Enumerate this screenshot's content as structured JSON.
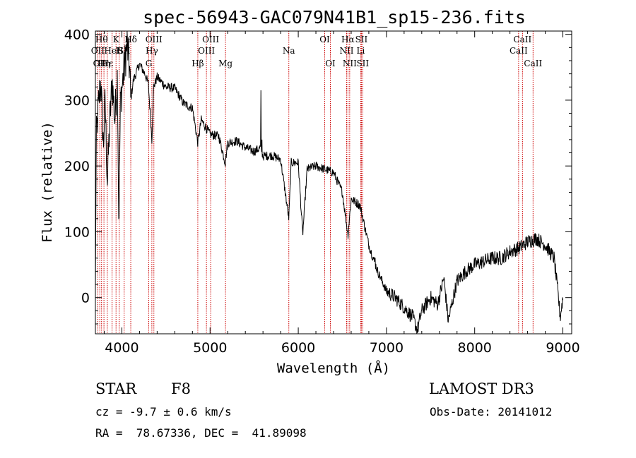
{
  "chart_data": {
    "type": "line",
    "title": "spec-56943-GAC079N41B1_sp15-236.fits",
    "xlabel": "Wavelength (Å)",
    "ylabel": "Flux (relative)",
    "xlim": [
      3700,
      9100
    ],
    "ylim": [
      -55,
      405
    ],
    "xticks": [
      4000,
      5000,
      6000,
      7000,
      8000,
      9000
    ],
    "yticks": [
      0,
      100,
      200,
      300,
      400
    ],
    "spectrum_anchors": [
      [
        3700,
        0
      ],
      [
        3710,
        240
      ],
      [
        3730,
        285
      ],
      [
        3760,
        330
      ],
      [
        3790,
        230
      ],
      [
        3810,
        300
      ],
      [
        3835,
        175
      ],
      [
        3860,
        260
      ],
      [
        3890,
        330
      ],
      [
        3920,
        270
      ],
      [
        3950,
        340
      ],
      [
        3965,
        110
      ],
      [
        3985,
        300
      ],
      [
        4020,
        340
      ],
      [
        4060,
        385
      ],
      [
        4090,
        345
      ],
      [
        4101,
        300
      ],
      [
        4130,
        330
      ],
      [
        4200,
        355
      ],
      [
        4260,
        340
      ],
      [
        4300,
        325
      ],
      [
        4340,
        240
      ],
      [
        4360,
        320
      ],
      [
        4400,
        335
      ],
      [
        4500,
        320
      ],
      [
        4600,
        318
      ],
      [
        4700,
        295
      ],
      [
        4800,
        288
      ],
      [
        4861,
        235
      ],
      [
        4900,
        270
      ],
      [
        5000,
        248
      ],
      [
        5100,
        245
      ],
      [
        5172,
        205
      ],
      [
        5200,
        235
      ],
      [
        5300,
        238
      ],
      [
        5400,
        228
      ],
      [
        5500,
        222
      ],
      [
        5577,
        228
      ],
      [
        5590,
        220
      ],
      [
        5600,
        215
      ],
      [
        5700,
        216
      ],
      [
        5800,
        210
      ],
      [
        5893,
        120
      ],
      [
        5920,
        205
      ],
      [
        6000,
        205
      ],
      [
        6050,
        95
      ],
      [
        6100,
        195
      ],
      [
        6200,
        200
      ],
      [
        6300,
        195
      ],
      [
        6400,
        190
      ],
      [
        6500,
        160
      ],
      [
        6563,
        95
      ],
      [
        6600,
        150
      ],
      [
        6700,
        140
      ],
      [
        6800,
        80
      ],
      [
        6900,
        40
      ],
      [
        7000,
        10
      ],
      [
        7100,
        0
      ],
      [
        7200,
        -15
      ],
      [
        7300,
        -30
      ],
      [
        7350,
        -50
      ],
      [
        7400,
        -20
      ],
      [
        7500,
        0
      ],
      [
        7580,
        -10
      ],
      [
        7650,
        30
      ],
      [
        7700,
        -35
      ],
      [
        7800,
        25
      ],
      [
        7900,
        40
      ],
      [
        8000,
        50
      ],
      [
        8100,
        55
      ],
      [
        8200,
        60
      ],
      [
        8300,
        60
      ],
      [
        8400,
        70
      ],
      [
        8500,
        75
      ],
      [
        8600,
        85
      ],
      [
        8700,
        90
      ],
      [
        8800,
        80
      ],
      [
        8900,
        60
      ],
      [
        8950,
        0
      ],
      [
        8970,
        -30
      ],
      [
        9000,
        0
      ]
    ],
    "spikes": [
      [
        3705,
        100
      ],
      [
        3740,
        300
      ],
      [
        5577,
        315
      ],
      [
        5589,
        240
      ],
      [
        6052,
        95
      ],
      [
        6870,
        60
      ]
    ],
    "line_markers": [
      {
        "wl": 3727,
        "labels": [
          {
            "text": "OII",
            "row": 2
          }
        ]
      },
      {
        "wl": 3750,
        "labels": [
          {
            "text": "OII",
            "row": 3
          }
        ]
      },
      {
        "wl": 3770,
        "labels": [
          {
            "text": "Hθ",
            "row": 1
          }
        ]
      },
      {
        "wl": 3797,
        "labels": [
          {
            "text": "Hη",
            "row": 3
          }
        ]
      },
      {
        "wl": 3835,
        "labels": [
          {
            "text": "Hε",
            "row": 3
          }
        ]
      },
      {
        "wl": 3889,
        "labels": [
          {
            "text": "HeI",
            "row": 2
          }
        ]
      },
      {
        "wl": 3934,
        "labels": [
          {
            "text": "K",
            "row": 1
          }
        ]
      },
      {
        "wl": 3970,
        "labels": [
          {
            "text": "H",
            "row": 2
          }
        ]
      },
      {
        "wl": 4026,
        "labels": [
          {
            "text": "SII",
            "row": 2
          }
        ]
      },
      {
        "wl": 4101,
        "labels": [
          {
            "text": "Hδ",
            "row": 1
          }
        ]
      },
      {
        "wl": 4305,
        "labels": [
          {
            "text": "G",
            "row": 3
          }
        ]
      },
      {
        "wl": 4340,
        "labels": [
          {
            "text": "Hγ",
            "row": 2
          }
        ]
      },
      {
        "wl": 4363,
        "labels": [
          {
            "text": "OIII",
            "row": 1
          }
        ]
      },
      {
        "wl": 4861,
        "labels": [
          {
            "text": "Hβ",
            "row": 3
          }
        ]
      },
      {
        "wl": 4959,
        "labels": [
          {
            "text": "OIII",
            "row": 2
          }
        ]
      },
      {
        "wl": 5007,
        "labels": [
          {
            "text": "OIII",
            "row": 1
          }
        ]
      },
      {
        "wl": 5175,
        "labels": [
          {
            "text": "Mg",
            "row": 3
          }
        ]
      },
      {
        "wl": 5893,
        "labels": [
          {
            "text": "Na",
            "row": 2
          }
        ]
      },
      {
        "wl": 6300,
        "labels": [
          {
            "text": "OI",
            "row": 1
          }
        ]
      },
      {
        "wl": 6364,
        "labels": [
          {
            "text": "OI",
            "row": 3
          }
        ]
      },
      {
        "wl": 6548,
        "labels": [
          {
            "text": "NII",
            "row": 2
          }
        ]
      },
      {
        "wl": 6563,
        "labels": [
          {
            "text": "Hα",
            "row": 1
          }
        ]
      },
      {
        "wl": 6583,
        "labels": [
          {
            "text": "NII",
            "row": 3
          }
        ]
      },
      {
        "wl": 6708,
        "labels": [
          {
            "text": "Li",
            "row": 2
          }
        ]
      },
      {
        "wl": 6716,
        "labels": [
          {
            "text": "SII",
            "row": 1
          }
        ]
      },
      {
        "wl": 6731,
        "labels": [
          {
            "text": "SII",
            "row": 3
          }
        ]
      },
      {
        "wl": 8498,
        "labels": [
          {
            "text": "CaII",
            "row": 2
          }
        ]
      },
      {
        "wl": 8542,
        "labels": [
          {
            "text": "CaII",
            "row": 1
          }
        ]
      },
      {
        "wl": 8662,
        "labels": [
          {
            "text": "CaII",
            "row": 3
          }
        ]
      }
    ],
    "marker_color": "#cc0000",
    "line_color": "#000000"
  },
  "info": {
    "object_class": "STAR",
    "subclass": "F8",
    "survey": "LAMOST DR3",
    "redshift": "cz = -9.7 ± 0.6 km/s",
    "obs_date": "Obs-Date: 20141012",
    "coords": "RA =  78.67336, DEC =  41.89098"
  }
}
